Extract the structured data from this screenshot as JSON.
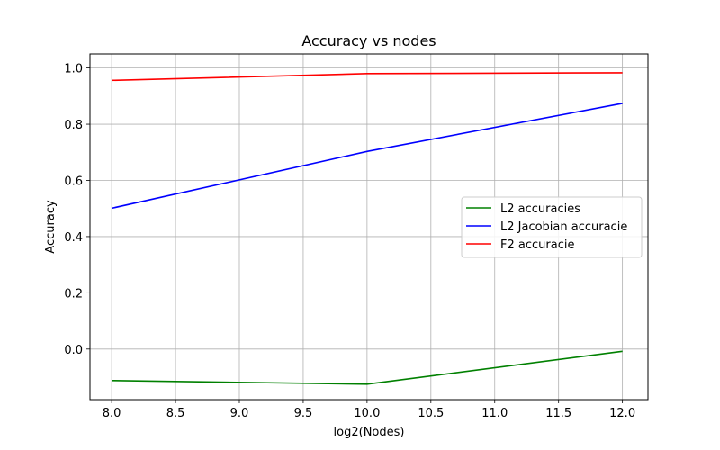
{
  "chart_data": {
    "type": "line",
    "title": "Accuracy vs nodes",
    "xlabel": "log2(Nodes)",
    "ylabel": "Accuracy",
    "xlim": [
      7.83,
      12.2
    ],
    "ylim": [
      -0.18,
      1.05
    ],
    "xticks": [
      8.0,
      8.5,
      9.0,
      9.5,
      10.0,
      10.5,
      11.0,
      11.5,
      12.0
    ],
    "xtick_labels": [
      "8.0",
      "8.5",
      "9.0",
      "9.5",
      "10.0",
      "10.5",
      "11.0",
      "11.5",
      "12.0"
    ],
    "yticks": [
      0.0,
      0.2,
      0.4,
      0.6,
      0.8,
      1.0
    ],
    "ytick_labels": [
      "0.0",
      "0.2",
      "0.4",
      "0.6",
      "0.8",
      "1.0"
    ],
    "grid": true,
    "legend_position": "center-right",
    "x": [
      8,
      10,
      12
    ],
    "series": [
      {
        "name": "L2 accuracies",
        "color": "#008000",
        "values": [
          -0.112,
          -0.125,
          -0.008
        ]
      },
      {
        "name": "L2 Jacobian accuracie",
        "color": "#0000ff",
        "values": [
          0.501,
          0.703,
          0.874
        ]
      },
      {
        "name": "F2 accuracie",
        "color": "#ff0000",
        "values": [
          0.956,
          0.98,
          0.983
        ]
      }
    ]
  }
}
